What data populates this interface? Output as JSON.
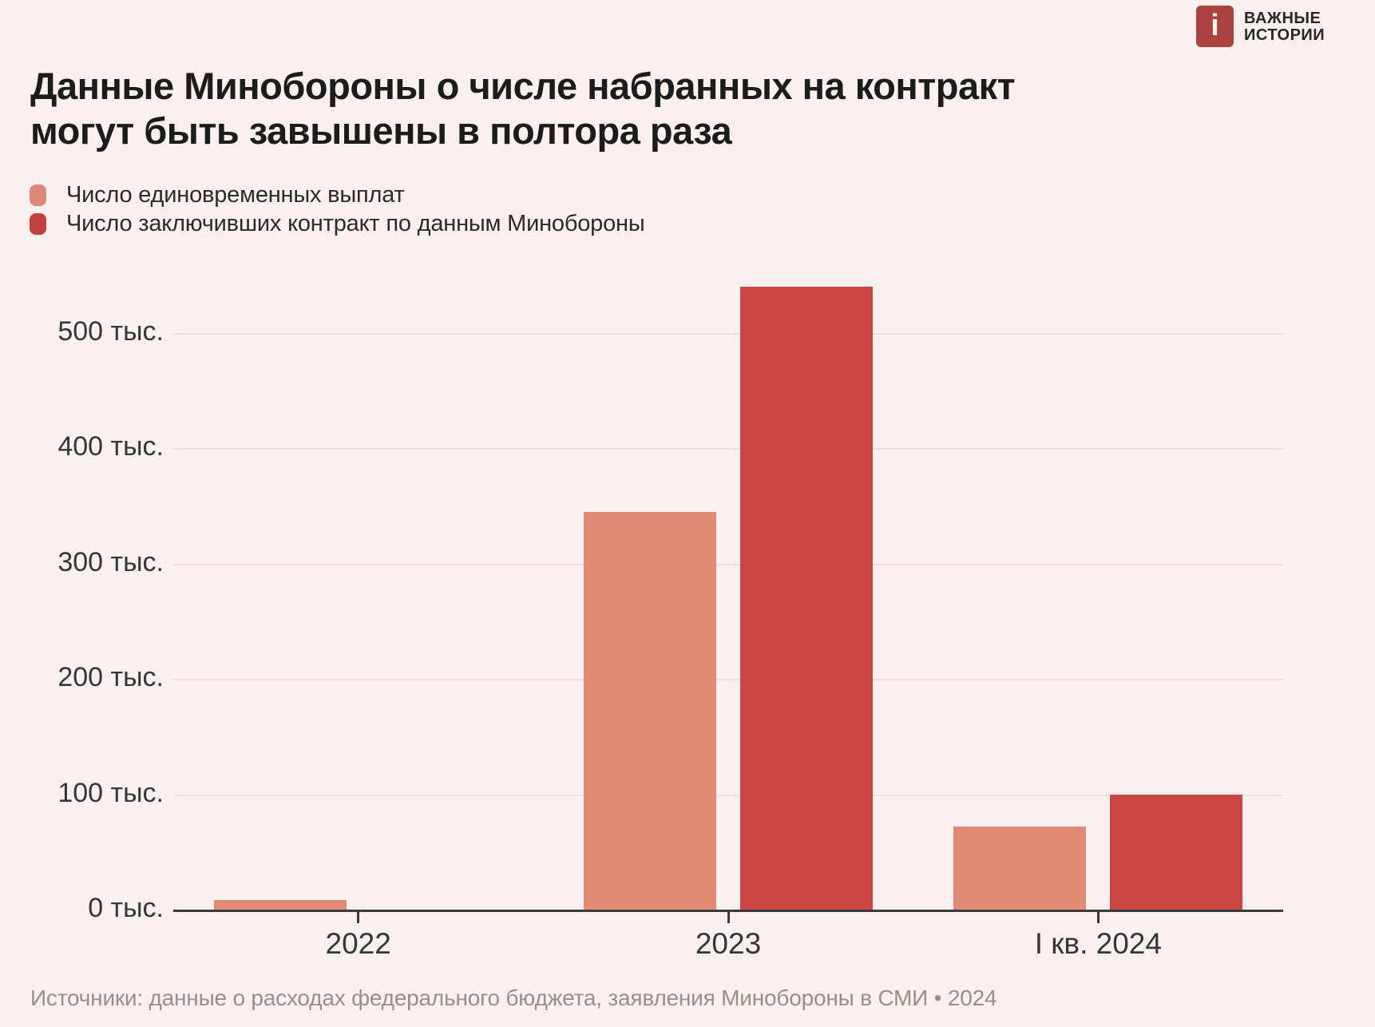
{
  "logo": {
    "icon_letter": "i",
    "line1": "ВАЖНЫЕ",
    "line2": "ИСТОРИИ"
  },
  "title": {
    "line1": "Данные Минобороны о числе набранных на контракт",
    "line2": "могут быть завышены в полтора раза"
  },
  "colors": {
    "background": "#faf0ee",
    "payments_bar": "#e18a76",
    "contracts_bar": "#c94645",
    "legend_payments_swatch": "#dd8876",
    "legend_contracts_swatch": "#c4403f",
    "logo_red": "#a84140",
    "gridline": "#ecdfdd",
    "axis": "#3a3a3a",
    "footer_text": "#9a8d8a"
  },
  "chart_data": {
    "type": "bar",
    "title": "Данные Минобороны о числе набранных на контракт могут быть завышены в полтора раза",
    "categories": [
      "2022",
      "2023",
      "I кв. 2024"
    ],
    "series": [
      {
        "name": "Число единовременных выплат",
        "color": "#e18a76",
        "values": [
          8,
          345,
          72
        ]
      },
      {
        "name": "Число заключивших контракт по данным Минобороны",
        "color": "#c94645",
        "values": [
          null,
          540,
          100
        ]
      }
    ],
    "unit": "тыс.",
    "ylim": [
      0,
      560
    ],
    "ytick_values": [
      0,
      100,
      200,
      300,
      400,
      500
    ],
    "ytick_labels": [
      "0 тыс.",
      "100 тыс.",
      "200 тыс.",
      "300 тыс.",
      "400 тыс.",
      "500 тыс."
    ],
    "grid": true,
    "legend_position": "top-left",
    "xlabel": "",
    "ylabel": ""
  },
  "footer": "Источники: данные о расходах федерального бюджета, заявления Минобороны в СМИ • 2024"
}
